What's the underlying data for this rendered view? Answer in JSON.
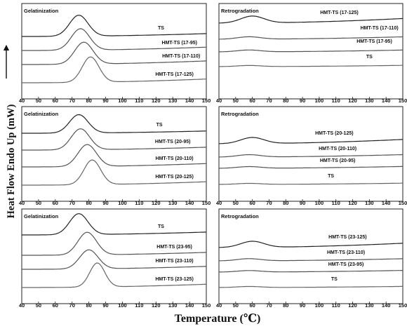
{
  "figure": {
    "ylabel": "Heat Flow Endo Up (mW)",
    "xlabel": "Temperature (℃)"
  },
  "chart_data": [
    {
      "type": "line",
      "title": "Gelatinization",
      "xlim": [
        40,
        150
      ],
      "xticks": [
        40,
        50,
        60,
        70,
        80,
        90,
        100,
        110,
        120,
        130,
        140,
        150
      ],
      "series": [
        {
          "name": "TS",
          "color": "#222222",
          "baseline": [
            0.0,
            0.12
          ],
          "peak": {
            "x": 74,
            "h": 0.88,
            "w": 5.5
          }
        },
        {
          "name": "HMT-TS (17-95)",
          "color": "#555555",
          "baseline": [
            0.0,
            0.14
          ],
          "peak": {
            "x": 75,
            "h": 0.9,
            "w": 5.5
          }
        },
        {
          "name": "HMT-TS (17-110)",
          "color": "#555555",
          "baseline": [
            0.0,
            0.15
          ],
          "peak": {
            "x": 77,
            "h": 0.92,
            "w": 5.5
          }
        },
        {
          "name": "HMT-TS (17-125)",
          "color": "#666666",
          "baseline": [
            0.0,
            0.14
          ],
          "peak": {
            "x": 81,
            "h": 0.95,
            "w": 5.0
          }
        }
      ]
    },
    {
      "type": "line",
      "title": "Retrogradation",
      "xlim": [
        40,
        150
      ],
      "xticks": [
        40,
        50,
        60,
        70,
        80,
        90,
        100,
        110,
        120,
        130,
        140,
        150
      ],
      "series": [
        {
          "name": "HMT-TS (17-125)",
          "color": "#222222",
          "baseline": [
            0.0,
            0.3
          ],
          "peak": {
            "x": 60,
            "h": 0.45,
            "w": 7.0
          }
        },
        {
          "name": "HMT-TS (17-110)",
          "color": "#555555",
          "baseline": [
            0.0,
            0.25
          ],
          "peak": {
            "x": 58,
            "h": 0.25,
            "w": 7.0
          }
        },
        {
          "name": "HMT-TS (17-95)",
          "color": "#555555",
          "baseline": [
            0.0,
            0.22
          ],
          "peak": {
            "x": 58,
            "h": 0.22,
            "w": 7.0
          }
        },
        {
          "name": "TS",
          "color": "#666666",
          "baseline": [
            0.0,
            0.18
          ],
          "peak": {
            "x": 58,
            "h": 0.16,
            "w": 7.0
          }
        }
      ]
    },
    {
      "type": "line",
      "title": "Gelatinization",
      "xlim": [
        40,
        150
      ],
      "xticks": [
        40,
        50,
        60,
        70,
        80,
        90,
        100,
        110,
        120,
        130,
        140,
        150
      ],
      "series": [
        {
          "name": "TS",
          "color": "#222222",
          "baseline": [
            0.0,
            0.1
          ],
          "peak": {
            "x": 74,
            "h": 0.82,
            "w": 5.5
          }
        },
        {
          "name": "HMT-TS (20-95)",
          "color": "#555555",
          "baseline": [
            0.0,
            0.12
          ],
          "peak": {
            "x": 75,
            "h": 0.88,
            "w": 5.5
          }
        },
        {
          "name": "HMT-TS (20-110)",
          "color": "#555555",
          "baseline": [
            0.0,
            0.14
          ],
          "peak": {
            "x": 79,
            "h": 0.92,
            "w": 5.5
          }
        },
        {
          "name": "HMT-TS (20-125)",
          "color": "#666666",
          "baseline": [
            0.0,
            0.13
          ],
          "peak": {
            "x": 82,
            "h": 0.95,
            "w": 5.0
          }
        }
      ]
    },
    {
      "type": "line",
      "title": "Retrogradation",
      "xlim": [
        40,
        150
      ],
      "xticks": [
        40,
        50,
        60,
        70,
        80,
        90,
        100,
        110,
        120,
        130,
        140,
        150
      ],
      "series": [
        {
          "name": "HMT-TS (20-125)",
          "color": "#222222",
          "baseline": [
            0.0,
            0.28
          ],
          "peak": {
            "x": 60,
            "h": 0.4,
            "w": 7.0
          }
        },
        {
          "name": "HMT-TS (20-110)",
          "color": "#555555",
          "baseline": [
            0.0,
            0.25
          ],
          "peak": {
            "x": 58,
            "h": 0.24,
            "w": 7.0
          }
        },
        {
          "name": "HMT-TS (20-95)",
          "color": "#555555",
          "baseline": [
            0.0,
            0.22
          ],
          "peak": {
            "x": 58,
            "h": 0.2,
            "w": 7.0
          }
        },
        {
          "name": "TS",
          "color": "#666666",
          "baseline": [
            0.0,
            0.18
          ],
          "peak": {
            "x": 58,
            "h": 0.15,
            "w": 7.0
          }
        }
      ]
    },
    {
      "type": "line",
      "title": "Gelatinization",
      "xlim": [
        40,
        150
      ],
      "xticks": [
        40,
        50,
        60,
        70,
        80,
        90,
        100,
        110,
        120,
        130,
        140,
        150
      ],
      "series": [
        {
          "name": "TS",
          "color": "#222222",
          "baseline": [
            0.0,
            0.12
          ],
          "peak": {
            "x": 74,
            "h": 0.88,
            "w": 5.5
          }
        },
        {
          "name": "HMT-TS (23-95)",
          "color": "#555555",
          "baseline": [
            0.0,
            0.12
          ],
          "peak": {
            "x": 79,
            "h": 0.95,
            "w": 5.5
          }
        },
        {
          "name": "HMT-TS (23-110)",
          "color": "#555555",
          "baseline": [
            0.0,
            0.13
          ],
          "peak": {
            "x": 80,
            "h": 0.85,
            "w": 5.5
          }
        },
        {
          "name": "HMT-TS (23-125)",
          "color": "#666666",
          "baseline": [
            0.0,
            0.13
          ],
          "peak": {
            "x": 85,
            "h": 0.95,
            "w": 4.5
          }
        }
      ]
    },
    {
      "type": "line",
      "title": "Retrogradation",
      "xlim": [
        40,
        150
      ],
      "xticks": [
        40,
        50,
        60,
        70,
        80,
        90,
        100,
        110,
        120,
        130,
        140,
        150
      ],
      "series": [
        {
          "name": "HMT-TS (23-125)",
          "color": "#222222",
          "baseline": [
            0.0,
            0.28
          ],
          "peak": {
            "x": 60,
            "h": 0.4,
            "w": 7.0
          }
        },
        {
          "name": "HMT-TS (23-110)",
          "color": "#555555",
          "baseline": [
            0.0,
            0.22
          ],
          "peak": {
            "x": 58,
            "h": 0.22,
            "w": 7.0
          }
        },
        {
          "name": "HMT-TS (23-95)",
          "color": "#555555",
          "baseline": [
            0.0,
            0.2
          ],
          "peak": {
            "x": 58,
            "h": 0.18,
            "w": 7.0
          }
        },
        {
          "name": "TS",
          "color": "#666666",
          "baseline": [
            0.0,
            0.16
          ],
          "peak": {
            "x": 58,
            "h": 0.15,
            "w": 7.0
          }
        }
      ]
    }
  ]
}
